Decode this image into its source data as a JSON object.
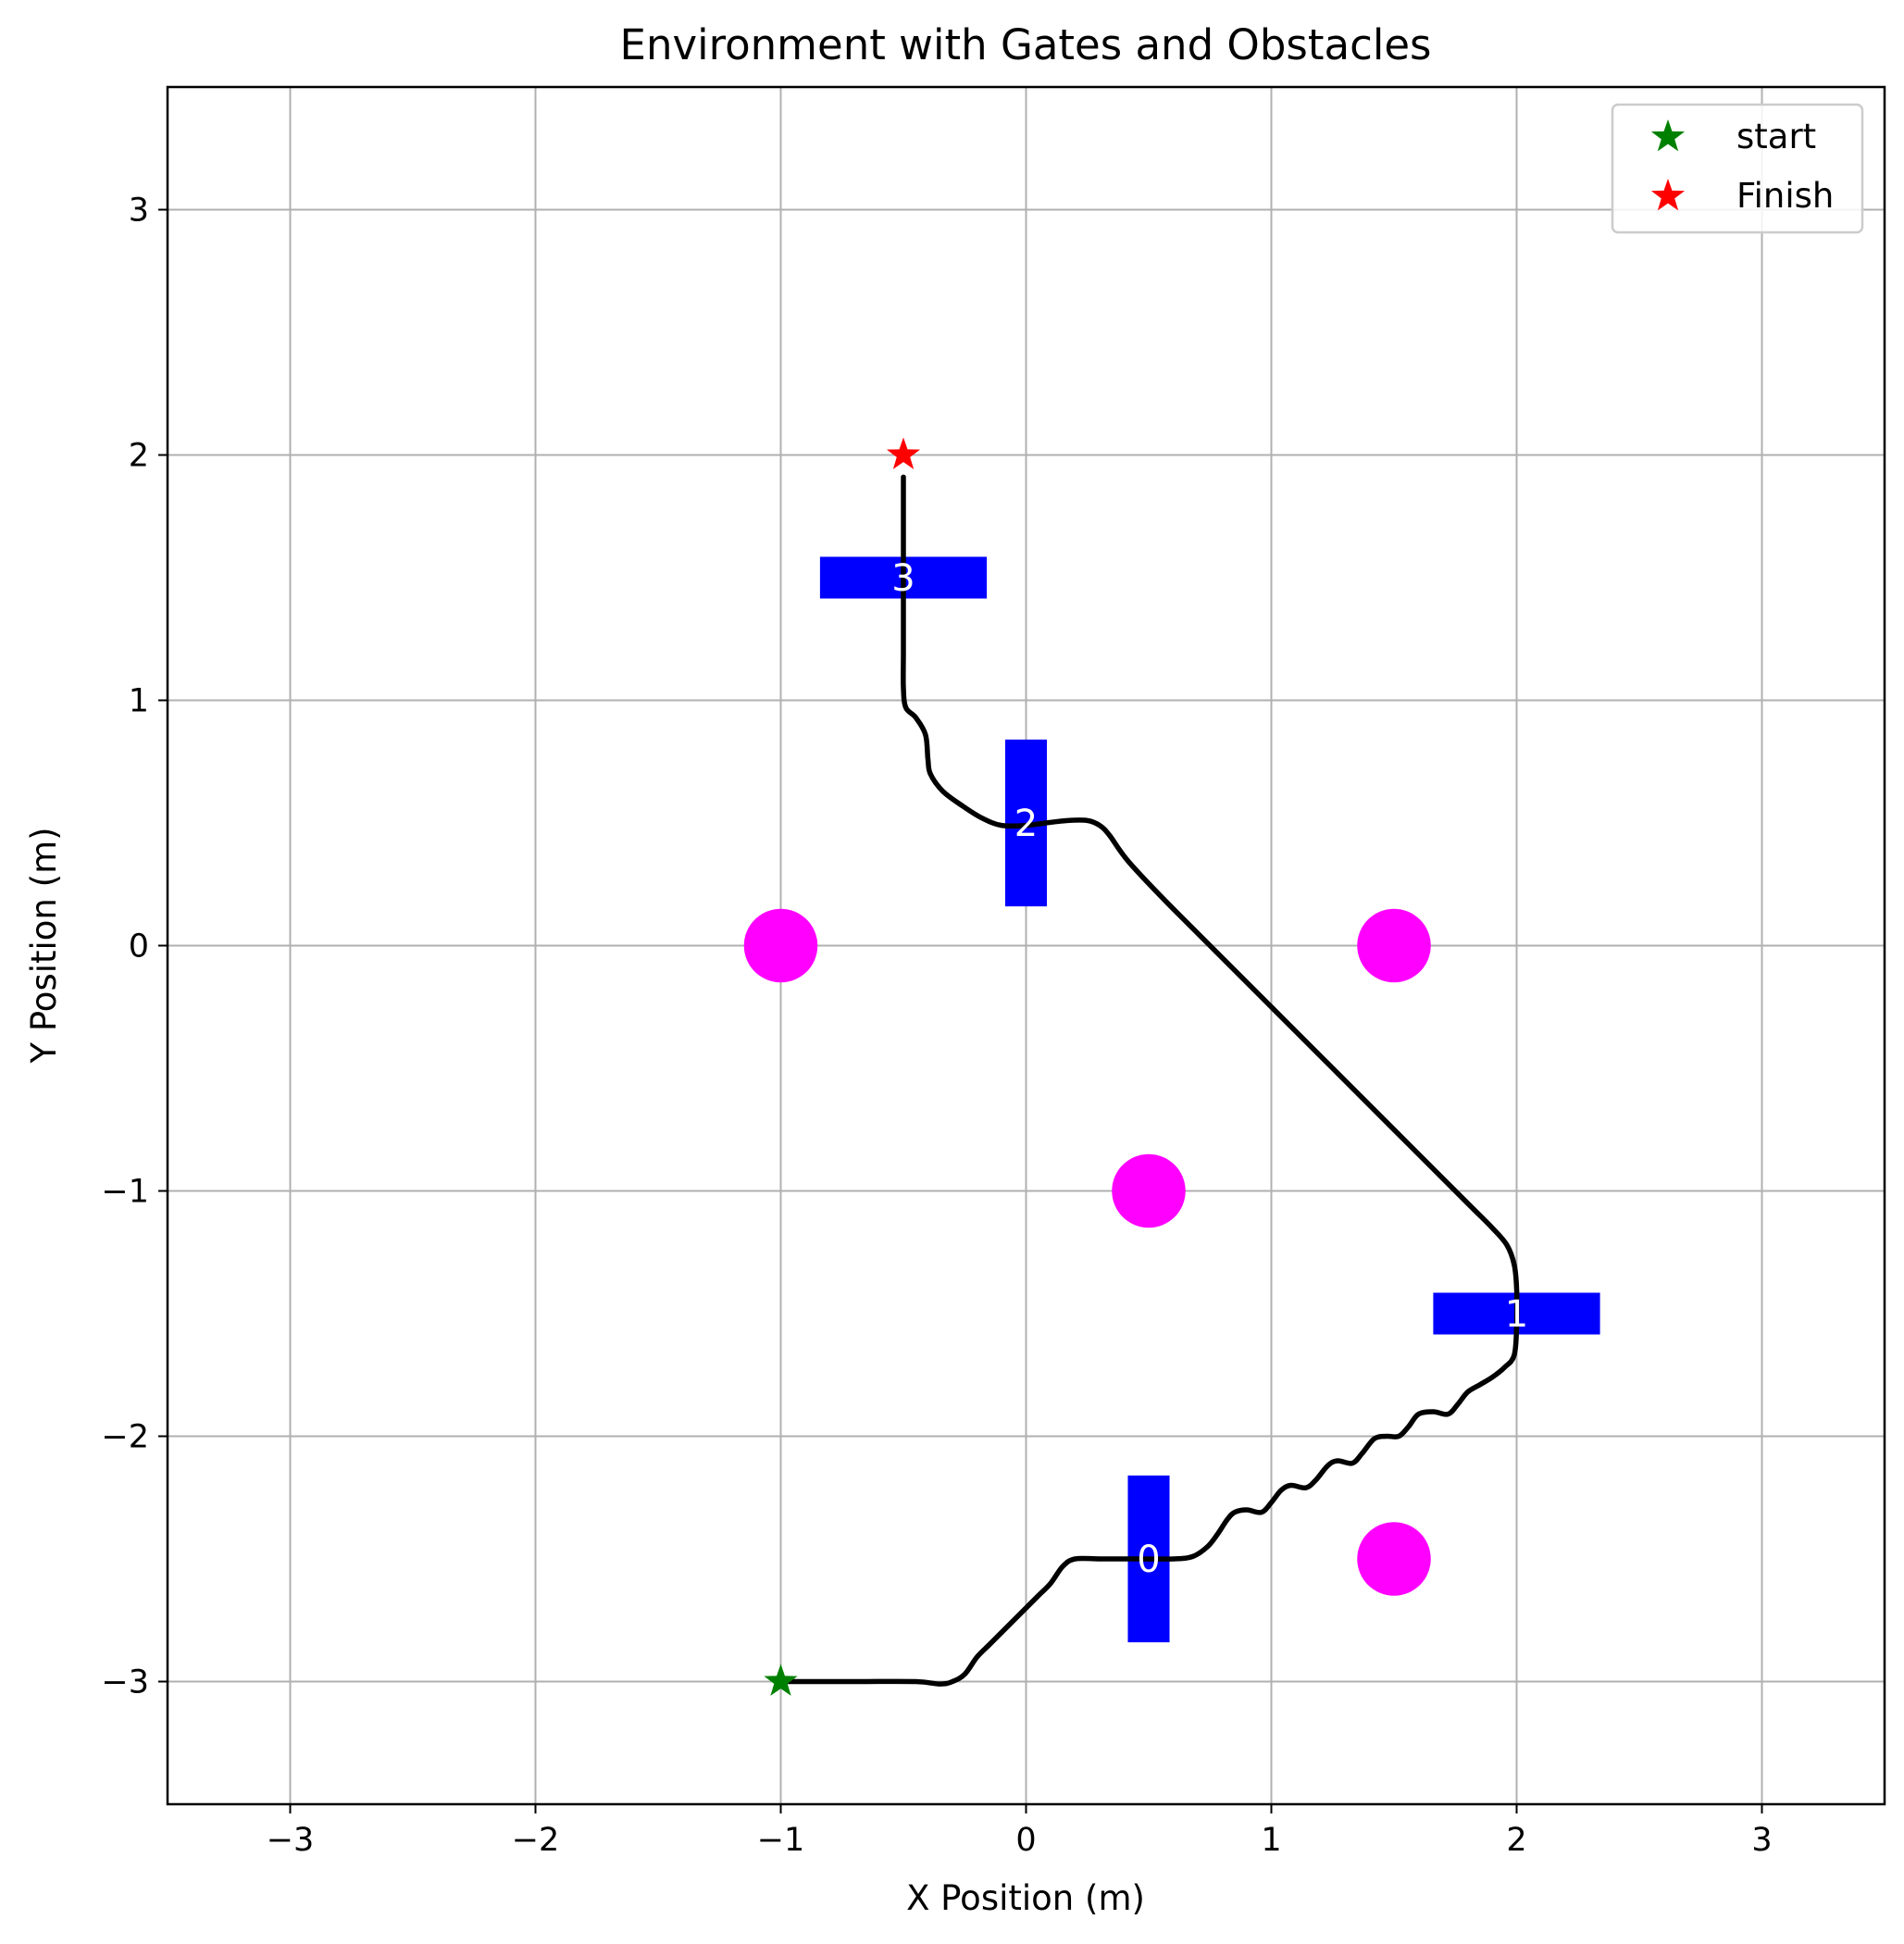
{
  "chart_data": {
    "type": "scatter",
    "title": "Environment with Gates and Obstacles",
    "xlabel": "X Position (m)",
    "ylabel": "Y Position (m)",
    "xlim": [
      -3.5,
      3.5
    ],
    "ylim": [
      -3.5,
      3.5
    ],
    "xticks": [
      -3,
      -2,
      -1,
      0,
      1,
      2,
      3
    ],
    "yticks": [
      -3,
      -2,
      -1,
      0,
      1,
      2,
      3
    ],
    "xtick_labels": [
      "−3",
      "−2",
      "−1",
      "0",
      "1",
      "2",
      "3"
    ],
    "ytick_labels": [
      "−3",
      "−2",
      "−1",
      "0",
      "1",
      "2",
      "3"
    ],
    "grid": true,
    "legend_position": "top-right",
    "legend": [
      {
        "label": "start",
        "color": "#008000",
        "marker": "star"
      },
      {
        "label": "Finish",
        "color": "#ff0000",
        "marker": "star"
      }
    ],
    "start": {
      "x": -1.0,
      "y": -3.0,
      "color": "#008000"
    },
    "finish": {
      "x": -0.5,
      "y": 2.0,
      "color": "#ff0000"
    },
    "gates": [
      {
        "label": "0",
        "x": 0.5,
        "y": -2.5,
        "orientation": "vertical",
        "length": 0.68,
        "thickness": 0.17
      },
      {
        "label": "1",
        "x": 2.0,
        "y": -1.5,
        "orientation": "horizontal",
        "length": 0.68,
        "thickness": 0.17
      },
      {
        "label": "2",
        "x": 0.0,
        "y": 0.5,
        "orientation": "vertical",
        "length": 0.68,
        "thickness": 0.17
      },
      {
        "label": "3",
        "x": -0.5,
        "y": 1.5,
        "orientation": "horizontal",
        "length": 0.68,
        "thickness": 0.17
      }
    ],
    "gate_color": "#0000ff",
    "obstacles": [
      {
        "x": -1.0,
        "y": 0.0
      },
      {
        "x": 1.5,
        "y": 0.0
      },
      {
        "x": 0.5,
        "y": -1.0
      },
      {
        "x": 1.5,
        "y": -2.5
      }
    ],
    "obstacle_radius": 0.15,
    "obstacle_color": "#ff00ff",
    "trajectory_color": "#000000",
    "trajectory": [
      [
        -1.0,
        -3.0
      ],
      [
        -0.7,
        -3.0
      ],
      [
        -0.45,
        -3.0
      ],
      [
        -0.35,
        -3.01
      ],
      [
        -0.3,
        -3.0
      ],
      [
        -0.25,
        -2.97
      ],
      [
        -0.2,
        -2.9
      ],
      [
        -0.15,
        -2.85
      ],
      [
        -0.1,
        -2.8
      ],
      [
        -0.05,
        -2.75
      ],
      [
        0.0,
        -2.7
      ],
      [
        0.05,
        -2.65
      ],
      [
        0.1,
        -2.6
      ],
      [
        0.15,
        -2.53
      ],
      [
        0.2,
        -2.5
      ],
      [
        0.3,
        -2.5
      ],
      [
        0.45,
        -2.5
      ],
      [
        0.6,
        -2.5
      ],
      [
        0.68,
        -2.49
      ],
      [
        0.74,
        -2.45
      ],
      [
        0.78,
        -2.4
      ],
      [
        0.82,
        -2.34
      ],
      [
        0.85,
        -2.31
      ],
      [
        0.9,
        -2.3
      ],
      [
        0.96,
        -2.31
      ],
      [
        1.0,
        -2.27
      ],
      [
        1.04,
        -2.22
      ],
      [
        1.08,
        -2.2
      ],
      [
        1.14,
        -2.21
      ],
      [
        1.18,
        -2.18
      ],
      [
        1.23,
        -2.12
      ],
      [
        1.27,
        -2.1
      ],
      [
        1.33,
        -2.11
      ],
      [
        1.37,
        -2.07
      ],
      [
        1.42,
        -2.01
      ],
      [
        1.47,
        -2.0
      ],
      [
        1.52,
        -2.0
      ],
      [
        1.56,
        -1.96
      ],
      [
        1.6,
        -1.91
      ],
      [
        1.66,
        -1.9
      ],
      [
        1.72,
        -1.91
      ],
      [
        1.76,
        -1.87
      ],
      [
        1.8,
        -1.82
      ],
      [
        1.85,
        -1.79
      ],
      [
        1.9,
        -1.76
      ],
      [
        1.95,
        -1.72
      ],
      [
        1.99,
        -1.67
      ],
      [
        2.0,
        -1.55
      ],
      [
        2.0,
        -1.4
      ],
      [
        1.99,
        -1.3
      ],
      [
        1.96,
        -1.22
      ],
      [
        1.9,
        -1.15
      ],
      [
        1.8,
        -1.05
      ],
      [
        1.5,
        -0.75
      ],
      [
        1.0,
        -0.25
      ],
      [
        0.6,
        0.15
      ],
      [
        0.42,
        0.34
      ],
      [
        0.34,
        0.45
      ],
      [
        0.3,
        0.49
      ],
      [
        0.25,
        0.51
      ],
      [
        0.17,
        0.51
      ],
      [
        0.08,
        0.5
      ],
      [
        0.0,
        0.49
      ],
      [
        -0.1,
        0.49
      ],
      [
        -0.18,
        0.52
      ],
      [
        -0.26,
        0.57
      ],
      [
        -0.34,
        0.63
      ],
      [
        -0.39,
        0.7
      ],
      [
        -0.4,
        0.76
      ],
      [
        -0.41,
        0.86
      ],
      [
        -0.45,
        0.93
      ],
      [
        -0.49,
        0.97
      ],
      [
        -0.5,
        1.05
      ],
      [
        -0.5,
        1.2
      ],
      [
        -0.5,
        1.45
      ],
      [
        -0.5,
        1.7
      ],
      [
        -0.5,
        1.91
      ]
    ]
  }
}
